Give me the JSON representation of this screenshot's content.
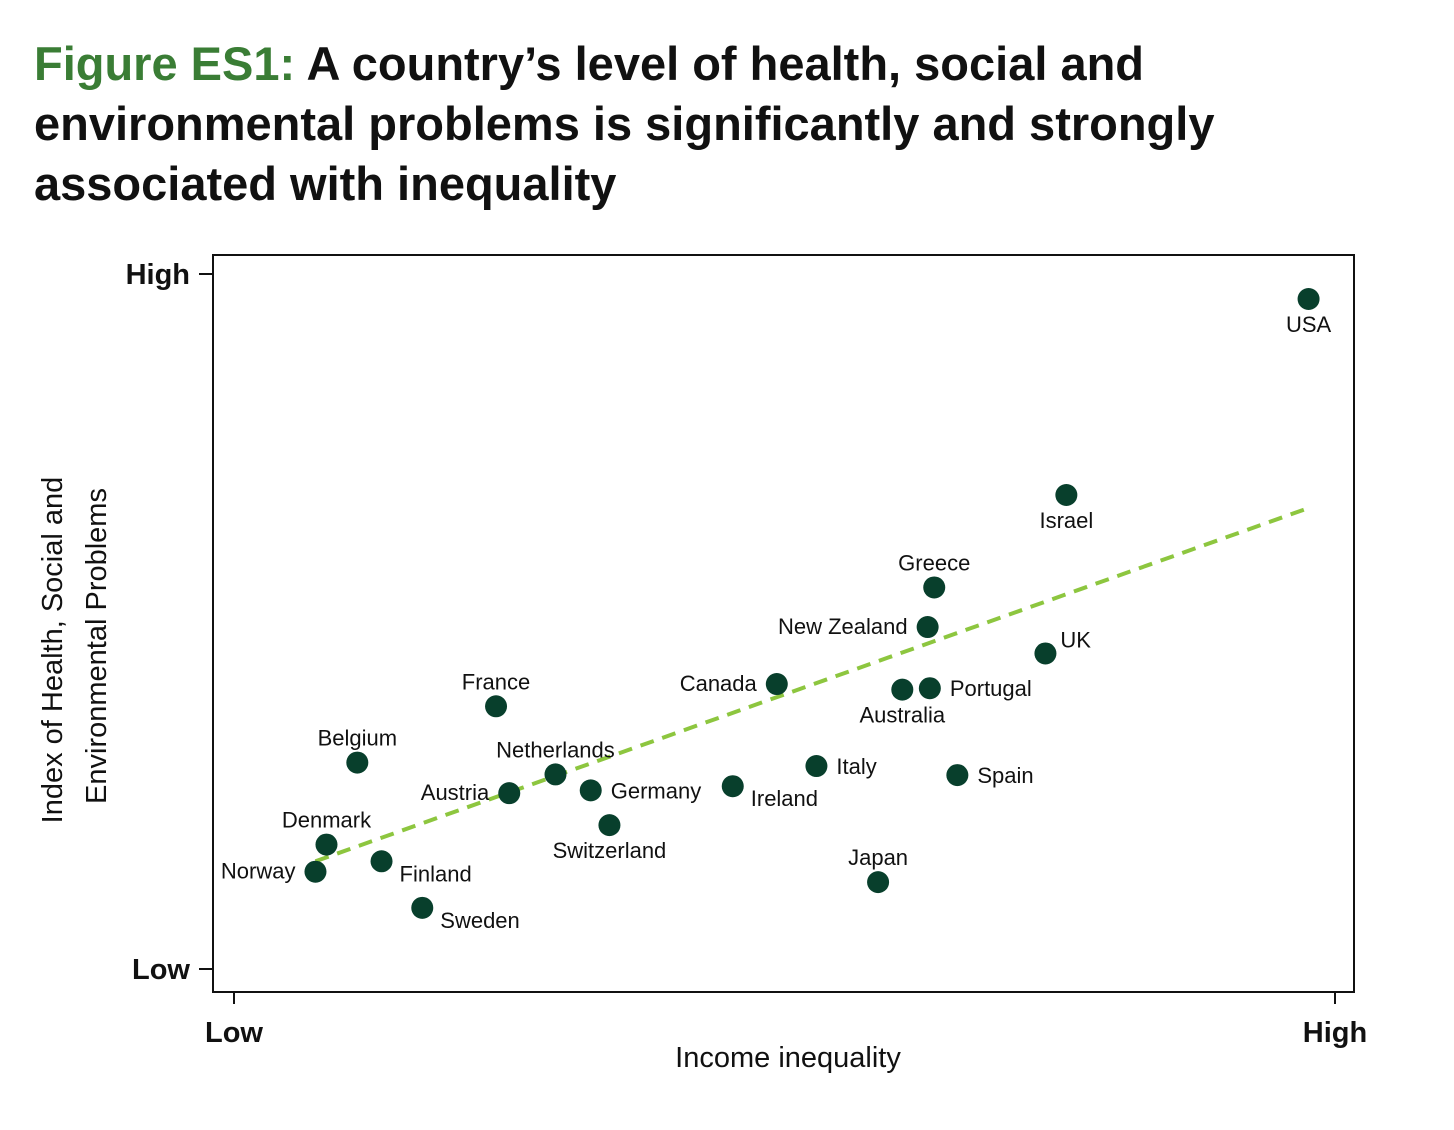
{
  "figure": {
    "label": "Figure ES1:",
    "title": "A country’s level of health, social and environmental problems is significantly and strongly associated with inequality"
  },
  "colors": {
    "accent_green": "#3a7d35",
    "point": "#083f2c",
    "trend": "#8dc63f",
    "axis": "#111111"
  },
  "chart_data": {
    "type": "scatter",
    "title": "A country’s level of health, social and environmental problems is significantly and strongly associated with inequality",
    "xlabel": "Income inequality",
    "ylabel_lines": [
      "Index of Health, Social and",
      "Environmental Problems"
    ],
    "xlim": [
      0,
      100
    ],
    "ylim": [
      0,
      100
    ],
    "x_ticks": [
      {
        "value": 0,
        "label": "Low"
      },
      {
        "value": 100,
        "label": "High"
      }
    ],
    "y_ticks": [
      {
        "value": 0,
        "label": "Low"
      },
      {
        "value": 100,
        "label": "High"
      }
    ],
    "points": [
      {
        "name": "USA",
        "x": 97.6,
        "y": 96.4,
        "label_pos": "below"
      },
      {
        "name": "Israel",
        "x": 75.6,
        "y": 68.2,
        "label_pos": "below"
      },
      {
        "name": "Greece",
        "x": 63.6,
        "y": 54.9,
        "label_pos": "above"
      },
      {
        "name": "New Zealand",
        "x": 63.0,
        "y": 49.2,
        "label_pos": "left"
      },
      {
        "name": "UK",
        "x": 73.7,
        "y": 45.4,
        "label_pos": "above-right"
      },
      {
        "name": "Canada",
        "x": 49.3,
        "y": 41.0,
        "label_pos": "left"
      },
      {
        "name": "Australia",
        "x": 60.7,
        "y": 40.2,
        "label_pos": "below"
      },
      {
        "name": "Portugal",
        "x": 63.2,
        "y": 40.4,
        "label_pos": "right"
      },
      {
        "name": "France",
        "x": 23.8,
        "y": 37.8,
        "label_pos": "above"
      },
      {
        "name": "Belgium",
        "x": 11.2,
        "y": 29.7,
        "label_pos": "above"
      },
      {
        "name": "Netherlands",
        "x": 29.2,
        "y": 28.0,
        "label_pos": "above"
      },
      {
        "name": "Italy",
        "x": 52.9,
        "y": 29.2,
        "label_pos": "right"
      },
      {
        "name": "Spain",
        "x": 65.7,
        "y": 27.9,
        "label_pos": "right"
      },
      {
        "name": "Austria",
        "x": 25.0,
        "y": 25.3,
        "label_pos": "left"
      },
      {
        "name": "Germany",
        "x": 32.4,
        "y": 25.7,
        "label_pos": "right"
      },
      {
        "name": "Ireland",
        "x": 45.3,
        "y": 26.3,
        "label_pos": "below-right"
      },
      {
        "name": "Switzerland",
        "x": 34.1,
        "y": 20.7,
        "label_pos": "below"
      },
      {
        "name": "Denmark",
        "x": 8.4,
        "y": 17.9,
        "label_pos": "above"
      },
      {
        "name": "Norway",
        "x": 7.4,
        "y": 14.0,
        "label_pos": "left"
      },
      {
        "name": "Finland",
        "x": 13.4,
        "y": 15.5,
        "label_pos": "below-right"
      },
      {
        "name": "Japan",
        "x": 58.5,
        "y": 12.5,
        "label_pos": "above"
      },
      {
        "name": "Sweden",
        "x": 17.1,
        "y": 8.8,
        "label_pos": "below-right"
      }
    ],
    "trend_line": {
      "style": "dashed",
      "x": [
        7.4,
        97.2
      ],
      "y": [
        15.5,
        66.1
      ]
    },
    "grid": false
  }
}
